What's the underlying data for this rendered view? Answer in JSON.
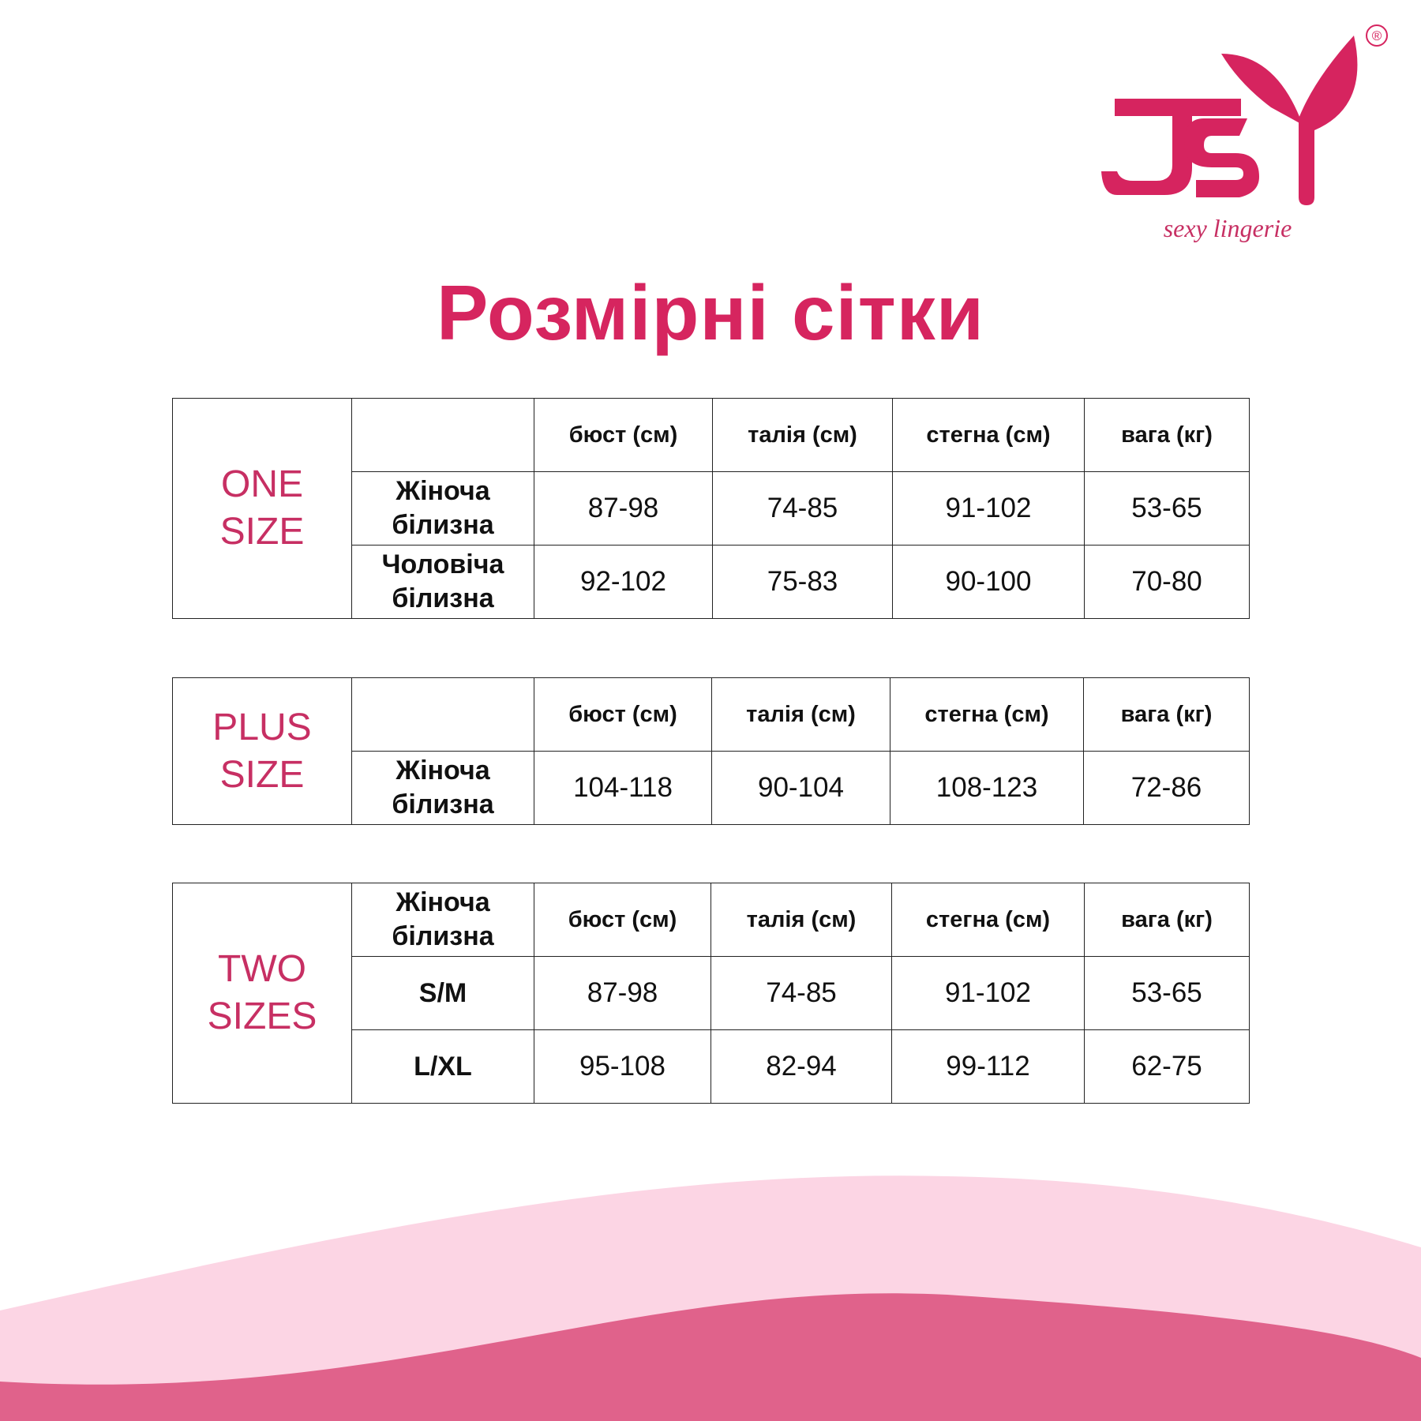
{
  "logo": {
    "text": "JSY",
    "tagline": "sexy lingerie",
    "registered": "®"
  },
  "title": "Розмірні сітки",
  "colors": {
    "accent": "#d6255f",
    "size_label": "#c72f63",
    "wave_light": "#fcd5e4",
    "wave_dark": "#e0628b"
  },
  "headers": [
    "бюст (см)",
    "талія (см)",
    "стегна (см)",
    "вага (кг)"
  ],
  "one_size": {
    "label_line1": "ONE",
    "label_line2": "SIZE",
    "rows": [
      {
        "l1": "Жіноча",
        "l2": "білизна",
        "values": [
          "87-98",
          "74-85",
          "91-102",
          "53-65"
        ]
      },
      {
        "l1": "Чоловіча",
        "l2": "білизна",
        "values": [
          "92-102",
          "75-83",
          "90-100",
          "70-80"
        ]
      }
    ]
  },
  "plus_size": {
    "label_line1": "PLUS",
    "label_line2": "SIZE",
    "rows": [
      {
        "l1": "Жіноча",
        "l2": "білизна",
        "values": [
          "104-118",
          "90-104",
          "108-123",
          "72-86"
        ]
      }
    ]
  },
  "two_sizes": {
    "label_line1": "TWO",
    "label_line2": "SIZES",
    "header_l1": "Жіноча",
    "header_l2": "білизна",
    "rows": [
      {
        "size": "S/M",
        "values": [
          "87-98",
          "74-85",
          "91-102",
          "53-65"
        ]
      },
      {
        "size": "L/XL",
        "values": [
          "95-108",
          "82-94",
          "99-112",
          "62-75"
        ]
      }
    ]
  }
}
